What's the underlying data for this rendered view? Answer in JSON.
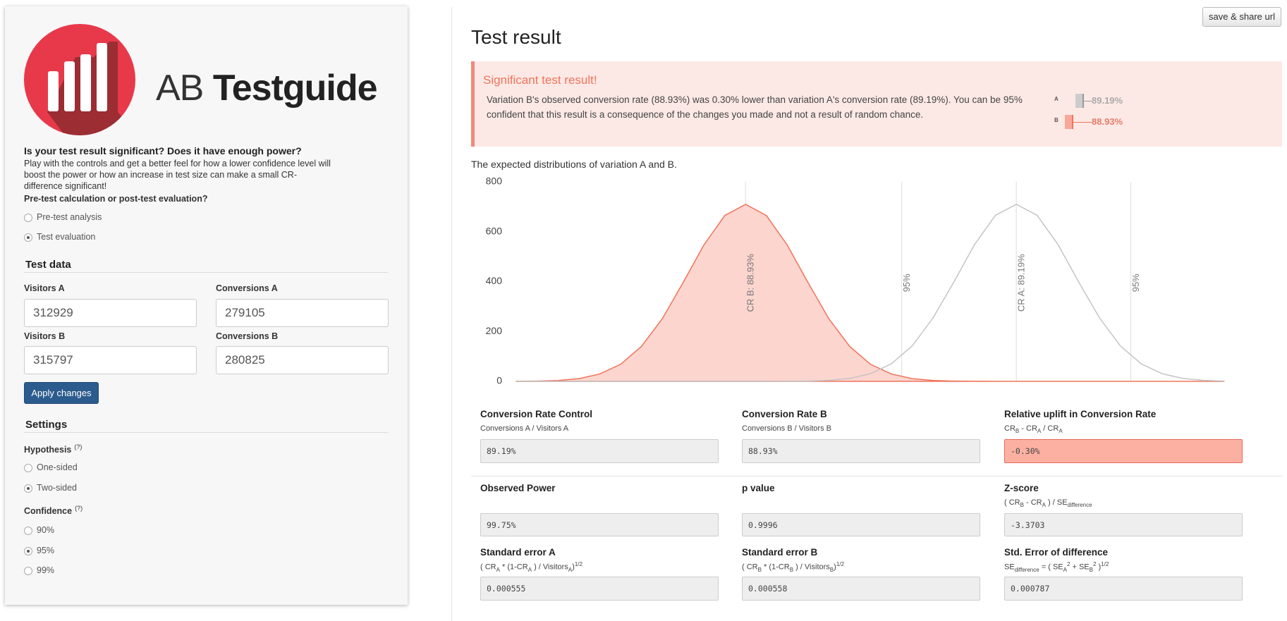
{
  "header": {
    "logo_light": "AB",
    "logo_bold": "Testguide"
  },
  "intro": {
    "question": "Is your test result significant? Does it have enough power?",
    "description": "Play with the controls and get a better feel for how a lower confidence level will boost the power or how an increase in test size can make a small CR-difference significant!"
  },
  "mode": {
    "label": "Pre-test calculation or post-test evaluation?",
    "options": [
      "Pre-test analysis",
      "Test evaluation"
    ],
    "selected": 1
  },
  "test_data": {
    "heading": "Test data",
    "fields": [
      {
        "label": "Visitors A",
        "value": 312929
      },
      {
        "label": "Conversions A",
        "value": 279105
      },
      {
        "label": "Visitors B",
        "value": 315797
      },
      {
        "label": "Conversions B",
        "value": 280825
      }
    ]
  },
  "apply_button": "Apply changes",
  "settings": {
    "heading": "Settings",
    "hypothesis": {
      "label": "Hypothesis",
      "help": "(?)",
      "options": [
        "One-sided",
        "Two-sided"
      ],
      "selected": 1
    },
    "confidence": {
      "label": "Confidence",
      "help": "(?)",
      "options": [
        "90%",
        "95%",
        "99%"
      ],
      "selected": 1
    }
  },
  "result": {
    "title": "Test result",
    "share_button": "save & share url",
    "alert": {
      "heading": "Significant test result!",
      "text": "Variation B's observed conversion rate (88.93%) was 0.30% lower than variation A's conversion rate (89.19%). You can be 95% confident that this result is a consequence of the changes you made and not a result of random chance."
    },
    "summary": [
      {
        "label": "A",
        "value": "89.19%"
      },
      {
        "label": "B",
        "value": "88.93%"
      }
    ],
    "chart_caption": "The expected distributions of variation A and B."
  },
  "chart_data": {
    "type": "area",
    "x": [
      88.71,
      88.73,
      88.75,
      88.77,
      88.79,
      88.81,
      88.83,
      88.85,
      88.87,
      88.89,
      88.91,
      88.93,
      88.95,
      88.97,
      88.99,
      89.01,
      89.03,
      89.05,
      89.07,
      89.09,
      89.11,
      89.13,
      89.15,
      89.17,
      89.19,
      89.21,
      89.23,
      89.25,
      89.27,
      89.29,
      89.31,
      89.33,
      89.35,
      89.37,
      89.39
    ],
    "series": [
      {
        "name": "B",
        "color": "#f0735a",
        "fill": "#fcd5cf",
        "values": [
          0.3,
          1.1,
          3.7,
          11.1,
          29.5,
          68.5,
          140,
          251,
          396,
          547,
          665,
          710,
          665,
          547,
          396,
          251,
          140,
          68.5,
          29.5,
          11.1,
          3.7,
          1.1,
          0.3,
          0.1,
          0,
          0,
          0,
          0,
          0,
          0,
          0,
          0,
          0,
          0,
          0
        ]
      },
      {
        "name": "A",
        "color": "#c4c4c4",
        "values": [
          0,
          0,
          0,
          0,
          0,
          0,
          0,
          0,
          0,
          0,
          0,
          0,
          0.1,
          0.3,
          1.2,
          3.9,
          11.6,
          30.5,
          70.3,
          142,
          254,
          398,
          549,
          666,
          710,
          666,
          549,
          398,
          254,
          142,
          70.3,
          30.5,
          11.6,
          3.9,
          1.2
        ]
      }
    ],
    "reference_lines": [
      {
        "value": 88.93,
        "label": "CR B: 88.93%"
      },
      {
        "value": 89.08,
        "label": "95%"
      },
      {
        "value": 89.19,
        "label": "CR A: 89.19%"
      },
      {
        "value": 89.3,
        "label": "95%"
      }
    ],
    "xlim": [
      88.705,
      89.408
    ],
    "ylim": [
      0,
      800
    ],
    "yticks": [
      0,
      200,
      400,
      600,
      800
    ],
    "grid": false
  },
  "stats": [
    {
      "label": "Conversion Rate Control",
      "formula": [
        {
          "text": "Conversions A / Visitors A"
        }
      ],
      "value": "89.19%"
    },
    {
      "label": "Conversion Rate B",
      "formula": [
        {
          "text": "Conversions B / Visitors B"
        }
      ],
      "value": "88.93%"
    },
    {
      "label": "Relative uplift in Conversion Rate",
      "formula": [
        {
          "text": "CR"
        },
        {
          "text": "B",
          "pos": "sub"
        },
        {
          "text": " - CR"
        },
        {
          "text": "A",
          "pos": "sub"
        },
        {
          "text": " / CR"
        },
        {
          "text": "A",
          "pos": "sub"
        }
      ],
      "value": "-0.30%",
      "highlight": true
    },
    {
      "label": "Observed Power",
      "value": "99.75%"
    },
    {
      "label": "p value",
      "value": "0.9996"
    },
    {
      "label": "Z-score",
      "formula": [
        {
          "text": "( CR"
        },
        {
          "text": "B",
          "pos": "sub"
        },
        {
          "text": " - CR"
        },
        {
          "text": "A",
          "pos": "sub"
        },
        {
          "text": " ) / SE"
        },
        {
          "text": "difference",
          "pos": "sub"
        }
      ],
      "value": "-3.3703"
    },
    {
      "label": "Standard error A",
      "formula": [
        {
          "text": "( CR"
        },
        {
          "text": "A",
          "pos": "sub"
        },
        {
          "text": " * (1-CR"
        },
        {
          "text": "A",
          "pos": "sub"
        },
        {
          "text": " ) / Visitors"
        },
        {
          "text": "A",
          "pos": "sub"
        },
        {
          "text": ")"
        },
        {
          "text": "1/2",
          "pos": "sup"
        }
      ],
      "value": "0.000555"
    },
    {
      "label": "Standard error B",
      "formula": [
        {
          "text": "( CR"
        },
        {
          "text": "B",
          "pos": "sub"
        },
        {
          "text": " * (1-CR"
        },
        {
          "text": "B",
          "pos": "sub"
        },
        {
          "text": " ) / Visitors"
        },
        {
          "text": "B",
          "pos": "sub"
        },
        {
          "text": ")"
        },
        {
          "text": "1/2",
          "pos": "sup"
        }
      ],
      "value": "0.000558"
    },
    {
      "label": "Std. Error of difference",
      "formula": [
        {
          "text": "SE"
        },
        {
          "text": "difference",
          "pos": "sub"
        },
        {
          "text": " = ( SE"
        },
        {
          "text": "A",
          "pos": "sub"
        },
        {
          "text": "2",
          "pos": "sup"
        },
        {
          "text": " + SE"
        },
        {
          "text": "B",
          "pos": "sub"
        },
        {
          "text": "2",
          "pos": "sup"
        },
        {
          "text": " )"
        },
        {
          "text": "1/2",
          "pos": "sup"
        }
      ],
      "value": "0.000787"
    }
  ]
}
